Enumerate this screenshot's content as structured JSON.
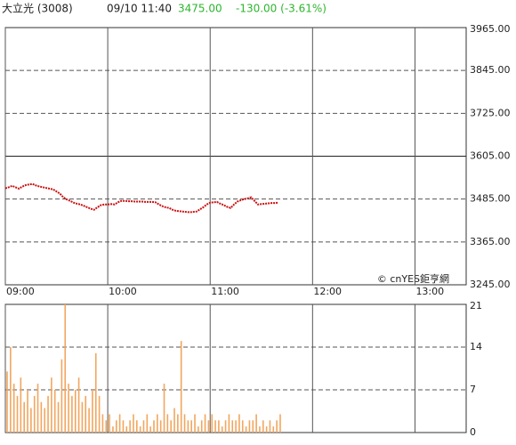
{
  "header": {
    "name": "大立光 (3008)",
    "time": "09/10 11:40",
    "price": "3475.00",
    "change": "-130.00 (-3.61%)",
    "change_color": "#2db52d"
  },
  "watermark": "© cnYES鉅亨網",
  "chart_data": [
    {
      "type": "line",
      "x": [
        "09:00",
        "09:02",
        "09:04",
        "09:06",
        "09:08",
        "09:10",
        "09:12",
        "09:14",
        "09:16",
        "09:18",
        "09:20",
        "09:22",
        "09:24",
        "09:26",
        "09:28",
        "09:30",
        "09:32",
        "09:34",
        "09:36",
        "09:38",
        "09:40",
        "09:42",
        "09:44",
        "09:46",
        "09:48",
        "09:50",
        "09:52",
        "09:54",
        "09:56",
        "09:58",
        "10:00",
        "10:02",
        "10:04",
        "10:06",
        "10:08",
        "10:10",
        "10:12",
        "10:14",
        "10:16",
        "10:18",
        "10:20",
        "10:22",
        "10:24",
        "10:26",
        "10:28",
        "10:30",
        "10:32",
        "10:34",
        "10:36",
        "10:38",
        "10:40",
        "10:42",
        "10:44",
        "10:46",
        "10:48",
        "10:50",
        "10:52",
        "10:54",
        "10:56",
        "10:58",
        "11:00",
        "11:02",
        "11:04",
        "11:06",
        "11:08",
        "11:10",
        "11:12",
        "11:14",
        "11:16",
        "11:18",
        "11:20",
        "11:22",
        "11:24",
        "11:26",
        "11:28",
        "11:30",
        "11:32",
        "11:34",
        "11:36",
        "11:38",
        "11:40"
      ],
      "series": [
        {
          "color": "#cc1111",
          "values": [
            3515,
            3518,
            3522,
            3518,
            3514,
            3520,
            3524,
            3526,
            3527,
            3523,
            3520,
            3518,
            3516,
            3514,
            3512,
            3506,
            3500,
            3490,
            3484,
            3480,
            3475,
            3472,
            3470,
            3466,
            3462,
            3458,
            3455,
            3462,
            3468,
            3470,
            3470,
            3471,
            3470,
            3476,
            3480,
            3480,
            3479,
            3479,
            3478,
            3478,
            3478,
            3477,
            3477,
            3477,
            3476,
            3470,
            3465,
            3462,
            3460,
            3455,
            3452,
            3451,
            3450,
            3449,
            3448,
            3449,
            3450,
            3456,
            3462,
            3470,
            3475,
            3476,
            3477,
            3472,
            3468,
            3463,
            3460,
            3470,
            3478,
            3482,
            3485,
            3487,
            3490,
            3480,
            3470,
            3471,
            3472,
            3473,
            3474,
            3474,
            3475
          ]
        }
      ],
      "xlim": [
        "09:00",
        "13:30"
      ],
      "xticks": [
        "09:00",
        "10:00",
        "11:00",
        "12:00",
        "13:00"
      ],
      "ylim": [
        3245,
        3965
      ],
      "yticks": [
        {
          "value": 3965,
          "label": "3965.00"
        },
        {
          "value": 3845,
          "label": "3845.00"
        },
        {
          "value": 3725,
          "label": "3725.00"
        },
        {
          "value": 3605,
          "label": "3605.00"
        },
        {
          "value": 3485,
          "label": "3485.00"
        },
        {
          "value": 3365,
          "label": "3365.00"
        },
        {
          "value": 3245,
          "label": "3245.00"
        }
      ],
      "baseline": 3605,
      "grid": true
    },
    {
      "type": "bar",
      "color": "#f2a65e",
      "values": [
        10,
        14,
        8,
        6,
        9,
        5,
        7,
        4,
        6,
        8,
        5,
        4,
        6,
        9,
        7,
        5,
        12,
        21,
        8,
        6,
        7,
        9,
        5,
        6,
        4,
        7,
        13,
        6,
        3,
        2,
        3,
        1,
        2,
        3,
        2,
        1,
        2,
        3,
        2,
        1,
        2,
        3,
        1,
        2,
        3,
        2,
        8,
        3,
        2,
        4,
        3,
        15,
        3,
        2,
        2,
        3,
        1,
        2,
        3,
        2,
        3,
        2,
        2,
        1,
        2,
        3,
        2,
        2,
        3,
        2,
        1,
        2,
        2,
        3,
        1,
        2,
        1,
        2,
        1,
        2,
        3
      ],
      "ylim": [
        0,
        21
      ],
      "yticks": [
        21,
        14,
        7,
        0
      ],
      "grid": true
    }
  ]
}
